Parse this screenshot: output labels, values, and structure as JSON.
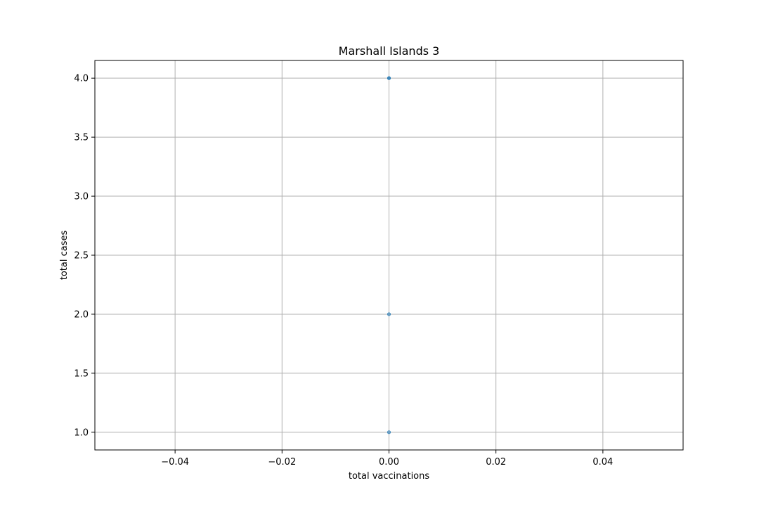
{
  "chart_data": {
    "type": "scatter",
    "title": "Marshall Islands 3",
    "xlabel": "total vaccinations",
    "ylabel": "total cases",
    "xlim": [
      -0.055,
      0.055
    ],
    "ylim": [
      0.85,
      4.15
    ],
    "xticks": [
      -0.04,
      -0.02,
      0.0,
      0.02,
      0.04
    ],
    "xtick_labels": [
      "−0.04",
      "−0.02",
      "0.00",
      "0.02",
      "0.04"
    ],
    "yticks": [
      1.0,
      1.5,
      2.0,
      2.5,
      3.0,
      3.5,
      4.0
    ],
    "ytick_labels": [
      "1.0",
      "1.5",
      "2.0",
      "2.5",
      "3.0",
      "3.5",
      "4.0"
    ],
    "grid": true,
    "point_color": "#1f77b4",
    "points": [
      {
        "x": 0.0,
        "y": 1.0
      },
      {
        "x": 0.0,
        "y": 2.0
      },
      {
        "x": 0.0,
        "y": 4.0
      },
      {
        "x": 0.0,
        "y": 4.0
      }
    ]
  }
}
